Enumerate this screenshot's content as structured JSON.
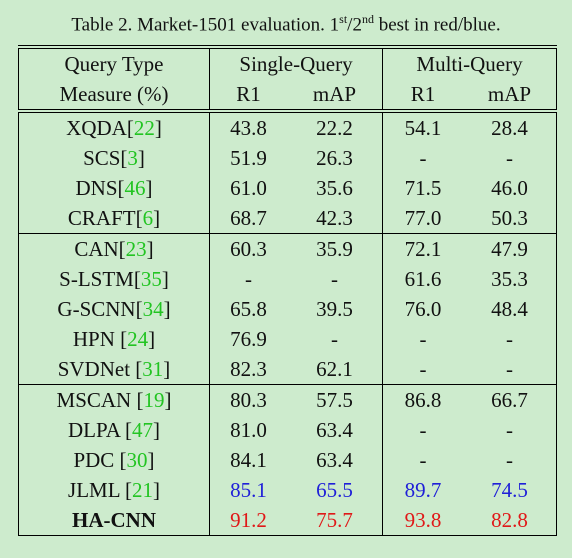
{
  "caption": {
    "lead": "Table 2. Market-1501 evaluation. 1",
    "sup1": "st",
    "mid": "/2",
    "sup2": "nd",
    "tail": " best in red/blue."
  },
  "header": {
    "row1": [
      "Query Type",
      "Single-Query",
      "Multi-Query"
    ],
    "row2": [
      "Measure (%)",
      "R1",
      "mAP",
      "R1",
      "mAP"
    ]
  },
  "groups": [
    [
      {
        "name": "XQDA[",
        "ref": "22",
        "end": "]",
        "values": [
          "43.8",
          "22.2",
          "54.1",
          "28.4"
        ]
      },
      {
        "name": "SCS[",
        "ref": "3",
        "end": "]",
        "values": [
          "51.9",
          "26.3",
          "-",
          "-"
        ]
      },
      {
        "name": "DNS[",
        "ref": "46",
        "end": "]",
        "values": [
          "61.0",
          "35.6",
          "71.5",
          "46.0"
        ]
      },
      {
        "name": "CRAFT[",
        "ref": "6",
        "end": "]",
        "values": [
          "68.7",
          "42.3",
          "77.0",
          "50.3"
        ]
      }
    ],
    [
      {
        "name": "CAN[",
        "ref": "23",
        "end": "]",
        "values": [
          "60.3",
          "35.9",
          "72.1",
          "47.9"
        ]
      },
      {
        "name": "S-LSTM[",
        "ref": "35",
        "end": "]",
        "values": [
          "-",
          "-",
          "61.6",
          "35.3"
        ]
      },
      {
        "name": "G-SCNN[",
        "ref": "34",
        "end": "]",
        "values": [
          "65.8",
          "39.5",
          "76.0",
          "48.4"
        ]
      },
      {
        "name": "HPN [",
        "ref": "24",
        "end": "]",
        "values": [
          "76.9",
          "-",
          "-",
          "-"
        ]
      },
      {
        "name": "SVDNet [",
        "ref": "31",
        "end": "]",
        "values": [
          "82.3",
          "62.1",
          "-",
          "-"
        ]
      }
    ],
    [
      {
        "name": "MSCAN [",
        "ref": "19",
        "end": "]",
        "values": [
          "80.3",
          "57.5",
          "86.8",
          "66.7"
        ]
      },
      {
        "name": "DLPA [",
        "ref": "47",
        "end": "]",
        "values": [
          "81.0",
          "63.4",
          "-",
          "-"
        ]
      },
      {
        "name": "PDC [",
        "ref": "30",
        "end": "]",
        "values": [
          "84.1",
          "63.4",
          "-",
          "-"
        ]
      },
      {
        "name": "JLML [",
        "ref": "21",
        "end": "]",
        "values": [
          "85.1",
          "65.5",
          "89.7",
          "74.5"
        ],
        "color": "#1f1fd8"
      },
      {
        "name": "HA-CNN",
        "values": [
          "91.2",
          "75.7",
          "93.8",
          "82.8"
        ],
        "color": "#e01818",
        "bold": true
      }
    ]
  ]
}
